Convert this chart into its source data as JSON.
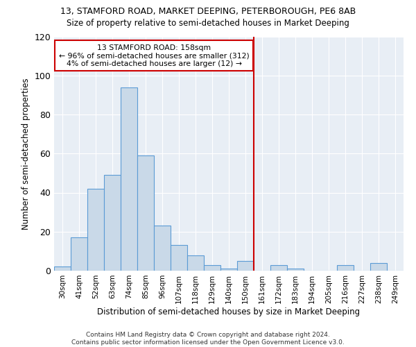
{
  "title1": "13, STAMFORD ROAD, MARKET DEEPING, PETERBOROUGH, PE6 8AB",
  "title2": "Size of property relative to semi-detached houses in Market Deeping",
  "xlabel": "Distribution of semi-detached houses by size in Market Deeping",
  "ylabel": "Number of semi-detached properties",
  "bin_labels": [
    "30sqm",
    "41sqm",
    "52sqm",
    "63sqm",
    "74sqm",
    "85sqm",
    "96sqm",
    "107sqm",
    "118sqm",
    "129sqm",
    "140sqm",
    "150sqm",
    "161sqm",
    "172sqm",
    "183sqm",
    "194sqm",
    "205sqm",
    "216sqm",
    "227sqm",
    "238sqm",
    "249sqm"
  ],
  "bar_heights": [
    2,
    17,
    42,
    49,
    94,
    59,
    23,
    13,
    8,
    3,
    1,
    5,
    0,
    3,
    1,
    0,
    0,
    3,
    0,
    4,
    0
  ],
  "bar_color": "#c9d9e8",
  "bar_edge_color": "#5b9bd5",
  "bar_width": 1.0,
  "ylim": [
    0,
    120
  ],
  "yticks": [
    0,
    20,
    40,
    60,
    80,
    100,
    120
  ],
  "red_line_x": 11.5,
  "red_line_color": "#cc0000",
  "annotation_text": "13 STAMFORD ROAD: 158sqm\n← 96% of semi-detached houses are smaller (312)\n4% of semi-detached houses are larger (12) →",
  "annotation_box_edge": "#cc0000",
  "footer": "Contains HM Land Registry data © Crown copyright and database right 2024.\nContains public sector information licensed under the Open Government Licence v3.0.",
  "bg_color": "#e8eef5"
}
